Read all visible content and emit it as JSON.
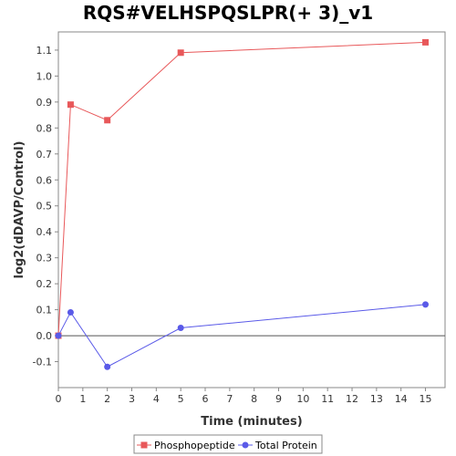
{
  "chart_data": {
    "type": "line",
    "title": "RQS#VELHSPQSLPR(+ 3)_v1",
    "xlabel": "Time (minutes)",
    "ylabel": "log2(dDAVP/Control)",
    "xlim": [
      0,
      15.8
    ],
    "ylim": [
      -0.2,
      1.17
    ],
    "x_ticks": [
      0,
      1,
      2,
      3,
      4,
      5,
      6,
      7,
      8,
      9,
      10,
      11,
      12,
      13,
      14,
      15
    ],
    "y_ticks": [
      -0.1,
      0.0,
      0.1,
      0.2,
      0.3,
      0.4,
      0.5,
      0.6,
      0.7,
      0.8,
      0.9,
      1.0,
      1.1
    ],
    "y_tick_labels": [
      "-0.1",
      "0.0",
      "0.1",
      "0.2",
      "0.3",
      "0.4",
      "0.5",
      "0.6",
      "0.7",
      "0.8",
      "0.9",
      "1.0",
      "1.1"
    ],
    "grid": false,
    "legend_position": "bottom",
    "series": [
      {
        "name": "Phosphopeptide",
        "color": "#e8585a",
        "marker": "square",
        "x": [
          0,
          0.5,
          2,
          5,
          15
        ],
        "y": [
          0.0,
          0.89,
          0.83,
          1.09,
          1.13
        ]
      },
      {
        "name": "Total Protein",
        "color": "#5a5ae8",
        "marker": "circle",
        "x": [
          0,
          0.5,
          2,
          5,
          15
        ],
        "y": [
          0.0,
          0.09,
          -0.12,
          0.03,
          0.12
        ]
      }
    ]
  }
}
